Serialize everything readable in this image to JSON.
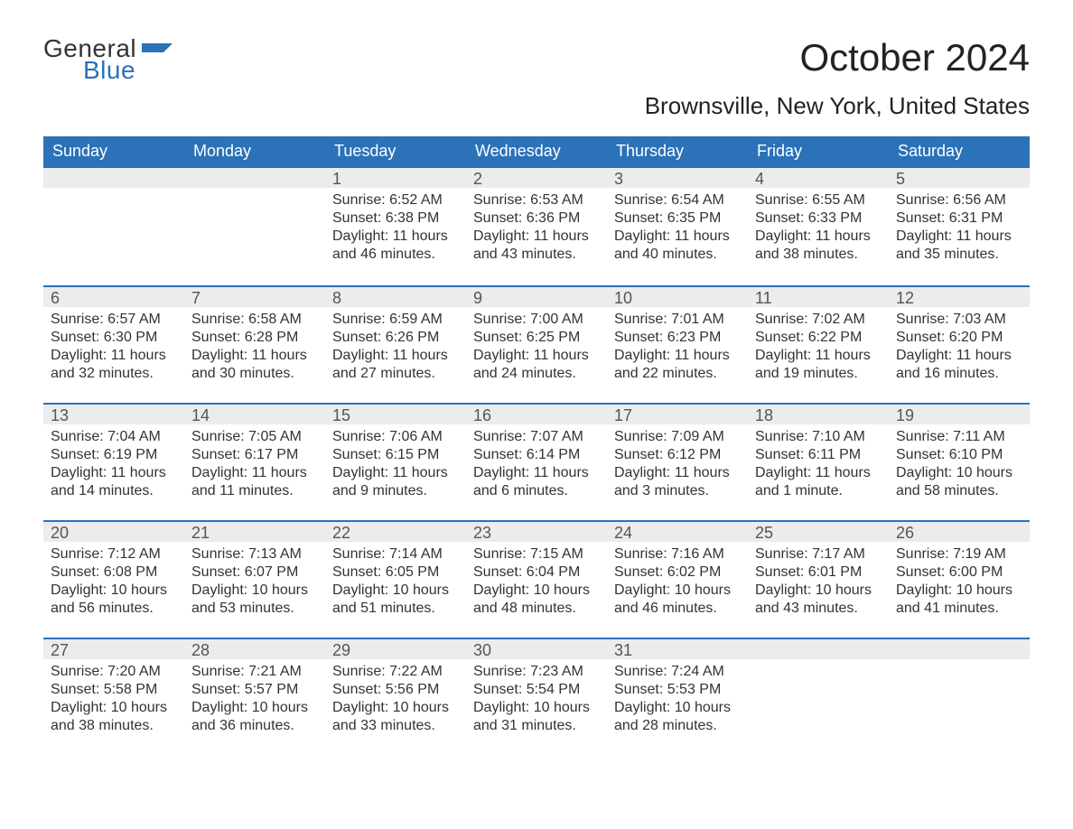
{
  "logo": {
    "line1": "General",
    "line2": "Blue",
    "flag_color": "#2b72b8"
  },
  "title": "October 2024",
  "location": "Brownsville, New York, United States",
  "colors": {
    "header_bg": "#2b72b8",
    "header_text": "#ffffff",
    "daynum_bg": "#ececec",
    "daynum_border": "#2b72b8",
    "body_text": "#333333",
    "page_bg": "#ffffff"
  },
  "labels": {
    "sunrise": "Sunrise:",
    "sunset": "Sunset:",
    "daylight": "Daylight:"
  },
  "days_of_week": [
    "Sunday",
    "Monday",
    "Tuesday",
    "Wednesday",
    "Thursday",
    "Friday",
    "Saturday"
  ],
  "weeks": [
    [
      {
        "day": "",
        "sunrise": "",
        "sunset": "",
        "daylight": ""
      },
      {
        "day": "",
        "sunrise": "",
        "sunset": "",
        "daylight": ""
      },
      {
        "day": "1",
        "sunrise": "6:52 AM",
        "sunset": "6:38 PM",
        "daylight": "11 hours and 46 minutes."
      },
      {
        "day": "2",
        "sunrise": "6:53 AM",
        "sunset": "6:36 PM",
        "daylight": "11 hours and 43 minutes."
      },
      {
        "day": "3",
        "sunrise": "6:54 AM",
        "sunset": "6:35 PM",
        "daylight": "11 hours and 40 minutes."
      },
      {
        "day": "4",
        "sunrise": "6:55 AM",
        "sunset": "6:33 PM",
        "daylight": "11 hours and 38 minutes."
      },
      {
        "day": "5",
        "sunrise": "6:56 AM",
        "sunset": "6:31 PM",
        "daylight": "11 hours and 35 minutes."
      }
    ],
    [
      {
        "day": "6",
        "sunrise": "6:57 AM",
        "sunset": "6:30 PM",
        "daylight": "11 hours and 32 minutes."
      },
      {
        "day": "7",
        "sunrise": "6:58 AM",
        "sunset": "6:28 PM",
        "daylight": "11 hours and 30 minutes."
      },
      {
        "day": "8",
        "sunrise": "6:59 AM",
        "sunset": "6:26 PM",
        "daylight": "11 hours and 27 minutes."
      },
      {
        "day": "9",
        "sunrise": "7:00 AM",
        "sunset": "6:25 PM",
        "daylight": "11 hours and 24 minutes."
      },
      {
        "day": "10",
        "sunrise": "7:01 AM",
        "sunset": "6:23 PM",
        "daylight": "11 hours and 22 minutes."
      },
      {
        "day": "11",
        "sunrise": "7:02 AM",
        "sunset": "6:22 PM",
        "daylight": "11 hours and 19 minutes."
      },
      {
        "day": "12",
        "sunrise": "7:03 AM",
        "sunset": "6:20 PM",
        "daylight": "11 hours and 16 minutes."
      }
    ],
    [
      {
        "day": "13",
        "sunrise": "7:04 AM",
        "sunset": "6:19 PM",
        "daylight": "11 hours and 14 minutes."
      },
      {
        "day": "14",
        "sunrise": "7:05 AM",
        "sunset": "6:17 PM",
        "daylight": "11 hours and 11 minutes."
      },
      {
        "day": "15",
        "sunrise": "7:06 AM",
        "sunset": "6:15 PM",
        "daylight": "11 hours and 9 minutes."
      },
      {
        "day": "16",
        "sunrise": "7:07 AM",
        "sunset": "6:14 PM",
        "daylight": "11 hours and 6 minutes."
      },
      {
        "day": "17",
        "sunrise": "7:09 AM",
        "sunset": "6:12 PM",
        "daylight": "11 hours and 3 minutes."
      },
      {
        "day": "18",
        "sunrise": "7:10 AM",
        "sunset": "6:11 PM",
        "daylight": "11 hours and 1 minute."
      },
      {
        "day": "19",
        "sunrise": "7:11 AM",
        "sunset": "6:10 PM",
        "daylight": "10 hours and 58 minutes."
      }
    ],
    [
      {
        "day": "20",
        "sunrise": "7:12 AM",
        "sunset": "6:08 PM",
        "daylight": "10 hours and 56 minutes."
      },
      {
        "day": "21",
        "sunrise": "7:13 AM",
        "sunset": "6:07 PM",
        "daylight": "10 hours and 53 minutes."
      },
      {
        "day": "22",
        "sunrise": "7:14 AM",
        "sunset": "6:05 PM",
        "daylight": "10 hours and 51 minutes."
      },
      {
        "day": "23",
        "sunrise": "7:15 AM",
        "sunset": "6:04 PM",
        "daylight": "10 hours and 48 minutes."
      },
      {
        "day": "24",
        "sunrise": "7:16 AM",
        "sunset": "6:02 PM",
        "daylight": "10 hours and 46 minutes."
      },
      {
        "day": "25",
        "sunrise": "7:17 AM",
        "sunset": "6:01 PM",
        "daylight": "10 hours and 43 minutes."
      },
      {
        "day": "26",
        "sunrise": "7:19 AM",
        "sunset": "6:00 PM",
        "daylight": "10 hours and 41 minutes."
      }
    ],
    [
      {
        "day": "27",
        "sunrise": "7:20 AM",
        "sunset": "5:58 PM",
        "daylight": "10 hours and 38 minutes."
      },
      {
        "day": "28",
        "sunrise": "7:21 AM",
        "sunset": "5:57 PM",
        "daylight": "10 hours and 36 minutes."
      },
      {
        "day": "29",
        "sunrise": "7:22 AM",
        "sunset": "5:56 PM",
        "daylight": "10 hours and 33 minutes."
      },
      {
        "day": "30",
        "sunrise": "7:23 AM",
        "sunset": "5:54 PM",
        "daylight": "10 hours and 31 minutes."
      },
      {
        "day": "31",
        "sunrise": "7:24 AM",
        "sunset": "5:53 PM",
        "daylight": "10 hours and 28 minutes."
      },
      {
        "day": "",
        "sunrise": "",
        "sunset": "",
        "daylight": ""
      },
      {
        "day": "",
        "sunrise": "",
        "sunset": "",
        "daylight": ""
      }
    ]
  ]
}
